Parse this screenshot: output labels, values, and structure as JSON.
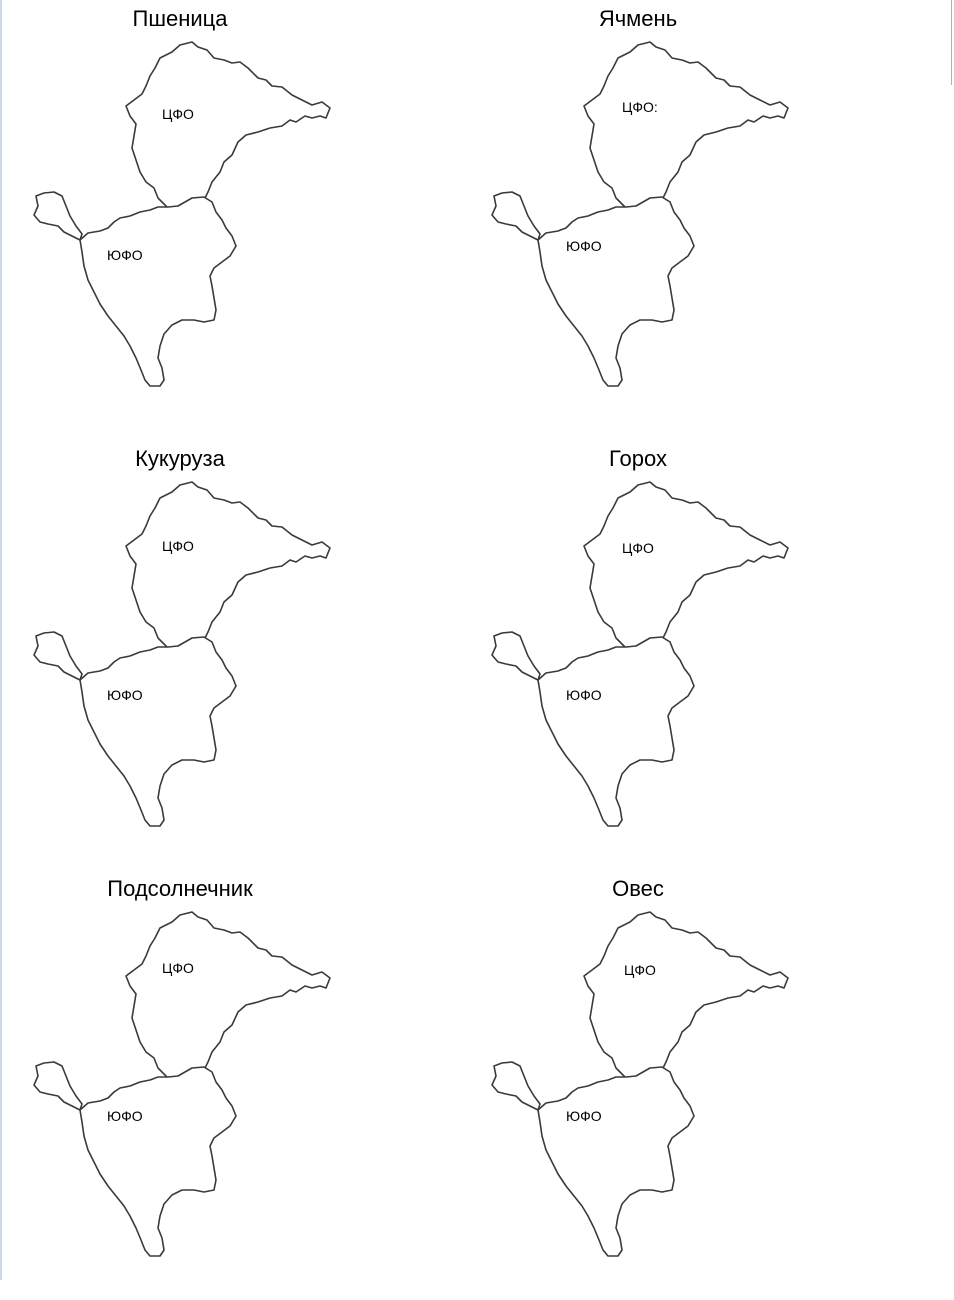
{
  "panels": [
    {
      "title": "Пшеница",
      "north_label": "ЦФО",
      "south_label": "ЮФО"
    },
    {
      "title": "Ячмень",
      "north_label": "ЦФО:",
      "south_label": "ЮФО"
    },
    {
      "title": "Кукуруза",
      "north_label": "ЦФО",
      "south_label": "ЮФО"
    },
    {
      "title": "Горох",
      "north_label": "ЦФО",
      "south_label": "ЮФО"
    },
    {
      "title": "Подсолнечник",
      "north_label": "ЦФО",
      "south_label": "ЮФО"
    },
    {
      "title": "Овес",
      "north_label": "ЦФО",
      "south_label": "ЮФО"
    }
  ]
}
